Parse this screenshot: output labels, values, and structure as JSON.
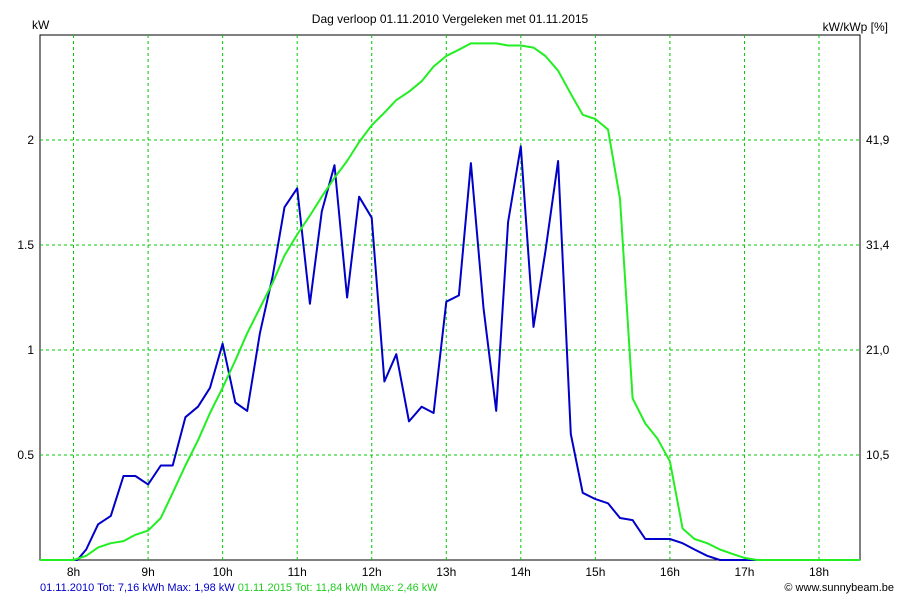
{
  "chart_data": {
    "type": "line",
    "title": "Dag  verloop 01.11.2010   Vergeleken met 01.11.2015",
    "ylabel": "kW",
    "y2label": "kW/kWp [%]",
    "xlim": [
      7.55,
      18.55
    ],
    "ylim": [
      0,
      2.5
    ],
    "x_ticks": [
      8,
      9,
      10,
      11,
      12,
      13,
      14,
      15,
      16,
      17,
      18
    ],
    "x_tick_labels": [
      "8h",
      "9h",
      "10h",
      "11h",
      "12h",
      "13h",
      "14h",
      "15h",
      "16h",
      "17h",
      "18h"
    ],
    "y_ticks": [
      0.5,
      1,
      1.5,
      2
    ],
    "y_tick_labels": [
      "0.5",
      "1",
      "1.5",
      "2"
    ],
    "y2_tick_labels": [
      "10,5",
      "21,0",
      "31,4",
      "41,9"
    ],
    "grid": true,
    "series": [
      {
        "name": "01.11.2010",
        "color": "#0000c8",
        "summary": "01.11.2010 Tot: 7,16 kWh Max: 1,98 kW",
        "points": [
          [
            7.55,
            0
          ],
          [
            8.05,
            0
          ],
          [
            8.17,
            0.05
          ],
          [
            8.33,
            0.17
          ],
          [
            8.5,
            0.21
          ],
          [
            8.67,
            0.4
          ],
          [
            8.83,
            0.4
          ],
          [
            9.0,
            0.36
          ],
          [
            9.17,
            0.45
          ],
          [
            9.33,
            0.45
          ],
          [
            9.5,
            0.68
          ],
          [
            9.67,
            0.73
          ],
          [
            9.83,
            0.82
          ],
          [
            10.0,
            1.03
          ],
          [
            10.17,
            0.75
          ],
          [
            10.33,
            0.71
          ],
          [
            10.5,
            1.08
          ],
          [
            10.67,
            1.35
          ],
          [
            10.83,
            1.68
          ],
          [
            11.0,
            1.77
          ],
          [
            11.17,
            1.22
          ],
          [
            11.33,
            1.66
          ],
          [
            11.5,
            1.88
          ],
          [
            11.67,
            1.25
          ],
          [
            11.83,
            1.73
          ],
          [
            12.0,
            1.63
          ],
          [
            12.17,
            0.85
          ],
          [
            12.33,
            0.98
          ],
          [
            12.5,
            0.66
          ],
          [
            12.67,
            0.73
          ],
          [
            12.83,
            0.7
          ],
          [
            13.0,
            1.23
          ],
          [
            13.17,
            1.26
          ],
          [
            13.33,
            1.89
          ],
          [
            13.5,
            1.2
          ],
          [
            13.67,
            0.71
          ],
          [
            13.83,
            1.61
          ],
          [
            14.0,
            1.97
          ],
          [
            14.17,
            1.11
          ],
          [
            14.33,
            1.47
          ],
          [
            14.5,
            1.9
          ],
          [
            14.67,
            0.6
          ],
          [
            14.83,
            0.32
          ],
          [
            15.0,
            0.29
          ],
          [
            15.17,
            0.27
          ],
          [
            15.33,
            0.2
          ],
          [
            15.5,
            0.19
          ],
          [
            15.67,
            0.1
          ],
          [
            15.83,
            0.1
          ],
          [
            16.0,
            0.1
          ],
          [
            16.17,
            0.08
          ],
          [
            16.33,
            0.05
          ],
          [
            16.5,
            0.02
          ],
          [
            16.67,
            0
          ],
          [
            18.55,
            0
          ]
        ]
      },
      {
        "name": "01.11.2015",
        "color": "#22ee22",
        "summary": "01.11.2015 Tot: 11,84 kWh Max: 2,46 kW",
        "points": [
          [
            7.55,
            0
          ],
          [
            8.0,
            0
          ],
          [
            8.17,
            0.02
          ],
          [
            8.33,
            0.06
          ],
          [
            8.5,
            0.08
          ],
          [
            8.67,
            0.09
          ],
          [
            8.83,
            0.12
          ],
          [
            9.0,
            0.14
          ],
          [
            9.17,
            0.2
          ],
          [
            9.33,
            0.32
          ],
          [
            9.5,
            0.45
          ],
          [
            9.67,
            0.57
          ],
          [
            9.83,
            0.7
          ],
          [
            10.0,
            0.82
          ],
          [
            10.17,
            0.95
          ],
          [
            10.33,
            1.08
          ],
          [
            10.5,
            1.2
          ],
          [
            10.67,
            1.32
          ],
          [
            10.83,
            1.45
          ],
          [
            11.0,
            1.55
          ],
          [
            11.17,
            1.64
          ],
          [
            11.33,
            1.73
          ],
          [
            11.5,
            1.82
          ],
          [
            11.67,
            1.9
          ],
          [
            11.83,
            1.99
          ],
          [
            12.0,
            2.07
          ],
          [
            12.17,
            2.13
          ],
          [
            12.33,
            2.19
          ],
          [
            12.5,
            2.23
          ],
          [
            12.67,
            2.28
          ],
          [
            12.83,
            2.35
          ],
          [
            13.0,
            2.4
          ],
          [
            13.17,
            2.43
          ],
          [
            13.33,
            2.46
          ],
          [
            13.5,
            2.46
          ],
          [
            13.67,
            2.46
          ],
          [
            13.83,
            2.45
          ],
          [
            14.0,
            2.45
          ],
          [
            14.17,
            2.44
          ],
          [
            14.33,
            2.4
          ],
          [
            14.5,
            2.33
          ],
          [
            14.67,
            2.22
          ],
          [
            14.83,
            2.12
          ],
          [
            15.0,
            2.1
          ],
          [
            15.17,
            2.05
          ],
          [
            15.33,
            1.72
          ],
          [
            15.5,
            0.77
          ],
          [
            15.67,
            0.65
          ],
          [
            15.83,
            0.58
          ],
          [
            16.0,
            0.47
          ],
          [
            16.17,
            0.15
          ],
          [
            16.33,
            0.1
          ],
          [
            16.5,
            0.08
          ],
          [
            16.67,
            0.05
          ],
          [
            16.83,
            0.03
          ],
          [
            17.0,
            0.01
          ],
          [
            17.17,
            0
          ],
          [
            18.55,
            0
          ]
        ]
      }
    ]
  },
  "footer": {
    "credit": "© www.sunnybeam.be"
  }
}
